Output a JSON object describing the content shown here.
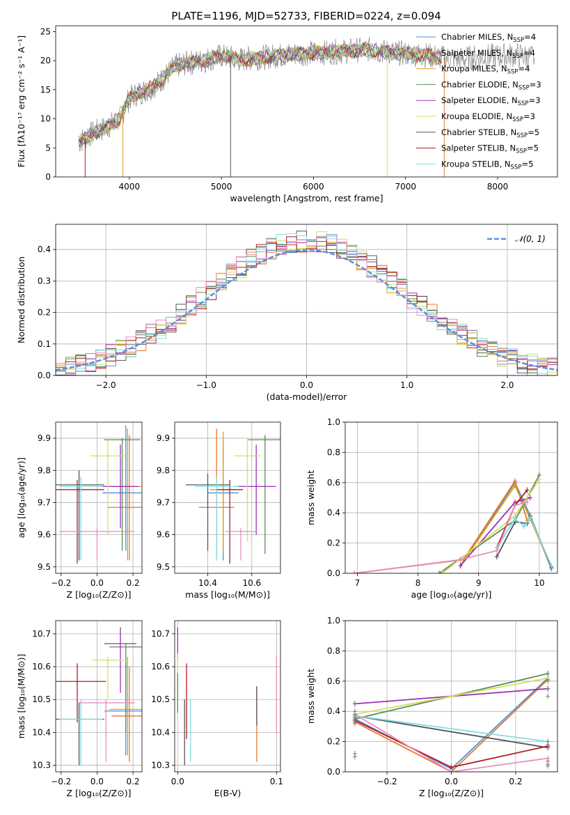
{
  "title": "PLATE=1196, MJD=52733, FIBERID=0224, z=0.094",
  "colors": {
    "Chabrier MILES": "#4a90d9",
    "Salpeter MILES": "#e8772e",
    "Kroupa MILES": "#d4a017",
    "Chabrier ELODIE": "#5b8a5b",
    "Salpeter ELODIE": "#9b30b0",
    "Kroupa ELODIE": "#d4e157",
    "Chabrier STELIB": "#555555",
    "Salpeter STELIB": "#b01c1c",
    "Kroupa STELIB": "#7fdde0",
    "pink": "#e88cc0",
    "normal": "#5b8fd9"
  },
  "chart_data": [
    {
      "type": "line",
      "panel": "spectrum",
      "xlabel": "wavelength [Angstrom, rest frame]",
      "ylabel": "Flux [fλ10⁻¹⁷ erg cm⁻² s⁻¹ A⁻¹]",
      "xlim": [
        3200,
        8650
      ],
      "ylim": [
        0,
        26
      ],
      "xticks": [
        4000,
        5000,
        6000,
        7000,
        8000
      ],
      "yticks": [
        0,
        5,
        10,
        15,
        20,
        25
      ],
      "legend_placement": "right",
      "legend": [
        {
          "name": "Chabrier MILES, N",
          "sub": "SSP",
          "eq": "=4",
          "color": "Chabrier MILES"
        },
        {
          "name": "Salpeter MILES, N",
          "sub": "SSP",
          "eq": "=4",
          "color": "Salpeter MILES"
        },
        {
          "name": "Kroupa MILES, N",
          "sub": "SSP",
          "eq": "=4",
          "color": "Kroupa MILES"
        },
        {
          "name": "Chabrier ELODIE, N",
          "sub": "SSP",
          "eq": "=3",
          "color": "Chabrier ELODIE"
        },
        {
          "name": "Salpeter ELODIE, N",
          "sub": "SSP",
          "eq": "=3",
          "color": "Salpeter ELODIE"
        },
        {
          "name": "Kroupa ELODIE, N",
          "sub": "SSP",
          "eq": "=3",
          "color": "Kroupa ELODIE"
        },
        {
          "name": "Chabrier STELIB, N",
          "sub": "SSP",
          "eq": "=5",
          "color": "Chabrier STELIB"
        },
        {
          "name": "Salpeter STELIB, N",
          "sub": "SSP",
          "eq": "=5",
          "color": "Salpeter STELIB"
        },
        {
          "name": "Kroupa STELIB, N",
          "sub": "SSP",
          "eq": "=5",
          "color": "Kroupa STELIB"
        }
      ],
      "continuum": [
        [
          3450,
          6.0
        ],
        [
          3600,
          7.5
        ],
        [
          3750,
          8.5
        ],
        [
          3900,
          10.0
        ],
        [
          3950,
          12.0
        ],
        [
          4000,
          13.5
        ],
        [
          4100,
          14.5
        ],
        [
          4200,
          15.0
        ],
        [
          4300,
          16.0
        ],
        [
          4400,
          17.5
        ],
        [
          4500,
          19.0
        ],
        [
          4600,
          19.5
        ],
        [
          4800,
          20.0
        ],
        [
          5000,
          20.8
        ],
        [
          5200,
          20.2
        ],
        [
          5400,
          20.5
        ],
        [
          5600,
          20.8
        ],
        [
          5800,
          21.2
        ],
        [
          6000,
          21.3
        ],
        [
          6200,
          21.5
        ],
        [
          6400,
          21.7
        ],
        [
          6600,
          21.9
        ],
        [
          6800,
          21.5
        ],
        [
          7000,
          21.2
        ],
        [
          7200,
          21.0
        ],
        [
          7400,
          20.5
        ],
        [
          7600,
          20.3
        ],
        [
          7800,
          20.6
        ],
        [
          8000,
          20.8
        ],
        [
          8200,
          21.0
        ],
        [
          8400,
          20.5
        ]
      ],
      "observed_range": [
        3450,
        8400
      ],
      "model_range": [
        3450,
        7400
      ],
      "dropouts": [
        {
          "x": 3520,
          "y": 0,
          "color": "Salpeter STELIB"
        },
        {
          "x": 3930,
          "y": 0,
          "color": "Kroupa MILES"
        },
        {
          "x": 5100,
          "y": 0,
          "color": "Chabrier STELIB"
        },
        {
          "x": 6800,
          "y": 0,
          "color": "Kroupa ELODIE"
        },
        {
          "x": 7420,
          "y": 0,
          "color": "Salpeter MILES"
        }
      ]
    },
    {
      "type": "histogram",
      "panel": "residuals",
      "xlabel": "(data-model)/error",
      "ylabel": "Normed distribution",
      "xlim": [
        -2.5,
        2.5
      ],
      "ylim": [
        0,
        0.48
      ],
      "xticks": [
        -2,
        -1,
        0,
        1,
        2
      ],
      "yticks": [
        0.0,
        0.1,
        0.2,
        0.3,
        0.4
      ],
      "grid": true,
      "bin_width": 0.1,
      "legend_label": "𝒩(0, 1)",
      "legend_placement": "top-right",
      "normal": {
        "mean": 0,
        "sigma": 1
      }
    },
    {
      "type": "scatter-errorbar",
      "panel": "age-Z",
      "xlabel": "Z [log₁₀(Z/Z⊙)]",
      "ylabel": "age  [log₁₀(age/yr)]",
      "xlim": [
        -0.23,
        0.25
      ],
      "ylim": [
        9.48,
        9.95
      ],
      "xticks": [
        -0.2,
        0.0,
        0.2
      ],
      "yticks": [
        9.5,
        9.6,
        9.7,
        9.8,
        9.9
      ],
      "grid": true,
      "points": [
        {
          "x": 0.16,
          "y": 9.73,
          "xerr": 0.13,
          "ylo": 9.55,
          "yhi": 9.94,
          "color": "Chabrier MILES"
        },
        {
          "x": 0.18,
          "y": 9.685,
          "xerr": 0.12,
          "ylo": 9.52,
          "yhi": 9.91,
          "color": "Salpeter MILES"
        },
        {
          "x": 0.17,
          "y": 9.75,
          "xerr": 0.1,
          "ylo": 9.52,
          "yhi": 9.93,
          "color": "Kroupa MILES"
        },
        {
          "x": 0.14,
          "y": 9.895,
          "xerr": 0.1,
          "ylo": 9.55,
          "yhi": 9.9,
          "color": "Chabrier ELODIE"
        },
        {
          "x": 0.13,
          "y": 9.75,
          "xerr": 0.1,
          "ylo": 9.62,
          "yhi": 9.88,
          "color": "Salpeter ELODIE"
        },
        {
          "x": 0.06,
          "y": 9.845,
          "xerr": 0.1,
          "ylo": 9.6,
          "yhi": 9.9,
          "color": "Kroupa ELODIE"
        },
        {
          "x": -0.1,
          "y": 9.755,
          "xerr": 0.14,
          "ylo": 9.52,
          "yhi": 9.8,
          "color": "Chabrier STELIB"
        },
        {
          "x": -0.11,
          "y": 9.74,
          "xerr": 0.15,
          "ylo": 9.51,
          "yhi": 9.77,
          "color": "Salpeter STELIB"
        },
        {
          "x": -0.09,
          "y": 9.75,
          "xerr": 0.12,
          "ylo": 9.52,
          "yhi": 9.78,
          "color": "Kroupa STELIB"
        },
        {
          "x": 0.0,
          "y": 9.61,
          "xerr": 0.21,
          "ylo": 9.52,
          "yhi": 9.62,
          "color": "pink"
        }
      ]
    },
    {
      "type": "scatter-errorbar",
      "panel": "age-mass",
      "xlabel": "mass [log₁₀(M/M⊙)]",
      "xlim": [
        10.25,
        10.73
      ],
      "ylim": [
        9.48,
        9.95
      ],
      "xticks": [
        10.4,
        10.6
      ],
      "yticks": [
        9.5,
        9.6,
        9.7,
        9.8,
        9.9
      ],
      "grid": true,
      "points": [
        {
          "x": 10.47,
          "y": 9.73,
          "xerr": 0.07,
          "ylo": 9.52,
          "yhi": 9.89,
          "color": "Chabrier MILES"
        },
        {
          "x": 10.44,
          "y": 9.685,
          "xerr": 0.08,
          "ylo": 9.53,
          "yhi": 9.93,
          "color": "Salpeter MILES"
        },
        {
          "x": 10.47,
          "y": 9.74,
          "xerr": 0.06,
          "ylo": 9.55,
          "yhi": 9.92,
          "color": "Kroupa MILES"
        },
        {
          "x": 10.66,
          "y": 9.895,
          "xerr": 0.08,
          "ylo": 9.54,
          "yhi": 9.91,
          "color": "Chabrier ELODIE"
        },
        {
          "x": 10.62,
          "y": 9.75,
          "xerr": 0.09,
          "ylo": 9.6,
          "yhi": 9.88,
          "color": "Salpeter ELODIE"
        },
        {
          "x": 10.58,
          "y": 9.845,
          "xerr": 0.06,
          "ylo": 9.58,
          "yhi": 9.9,
          "color": "Kroupa ELODIE"
        },
        {
          "x": 10.4,
          "y": 9.755,
          "xerr": 0.1,
          "ylo": 9.55,
          "yhi": 9.79,
          "color": "Chabrier STELIB"
        },
        {
          "x": 10.5,
          "y": 9.74,
          "xerr": 0.06,
          "ylo": 9.51,
          "yhi": 9.77,
          "color": "Salpeter STELIB"
        },
        {
          "x": 10.44,
          "y": 9.75,
          "xerr": 0.1,
          "ylo": 9.52,
          "yhi": 9.78,
          "color": "Kroupa STELIB"
        },
        {
          "x": 10.55,
          "y": 9.61,
          "xerr": 0.07,
          "ylo": 9.52,
          "yhi": 9.62,
          "color": "pink"
        }
      ]
    },
    {
      "type": "line",
      "panel": "weight-age",
      "xlabel": "age  [log₁₀(age/yr)]",
      "ylabel": "mass weight",
      "xlim": [
        6.8,
        10.3
      ],
      "ylim": [
        0.0,
        1.0
      ],
      "xticks": [
        7,
        8,
        9,
        10
      ],
      "yticks": [
        0.0,
        0.2,
        0.4,
        0.6,
        0.8,
        1.0
      ],
      "grid": true,
      "series": [
        {
          "color": "Chabrier MILES",
          "x": [
            8.7,
            9.6,
            9.85,
            10.2
          ],
          "y": [
            0.05,
            0.6,
            0.38,
            0.03
          ]
        },
        {
          "color": "Salpeter MILES",
          "x": [
            6.95,
            8.75,
            9.6,
            9.8
          ],
          "y": [
            0.0,
            0.09,
            0.61,
            0.35
          ]
        },
        {
          "color": "Kroupa MILES",
          "x": [
            8.7,
            9.6,
            9.85,
            10.2
          ],
          "y": [
            0.05,
            0.58,
            0.36,
            0.04
          ]
        },
        {
          "color": "Chabrier ELODIE",
          "x": [
            8.35,
            9.6,
            10.0
          ],
          "y": [
            0.0,
            0.35,
            0.65
          ]
        },
        {
          "color": "Salpeter ELODIE",
          "x": [
            8.7,
            9.6,
            9.85
          ],
          "y": [
            0.05,
            0.47,
            0.5
          ]
        },
        {
          "color": "Kroupa ELODIE",
          "x": [
            8.4,
            9.6,
            10.0
          ],
          "y": [
            0.0,
            0.38,
            0.62
          ]
        },
        {
          "color": "Chabrier STELIB",
          "x": [
            9.3,
            9.6,
            9.8,
            9.85,
            10.2
          ],
          "y": [
            0.11,
            0.34,
            0.33,
            0.38,
            0.04
          ]
        },
        {
          "color": "Salpeter STELIB",
          "x": [
            9.3,
            9.6,
            9.8
          ],
          "y": [
            0.17,
            0.45,
            0.55
          ]
        },
        {
          "color": "Kroupa STELIB",
          "x": [
            9.3,
            9.6,
            9.75,
            9.85,
            10.2
          ],
          "y": [
            0.17,
            0.36,
            0.31,
            0.37,
            0.05
          ]
        },
        {
          "color": "pink",
          "x": [
            6.95,
            8.7,
            9.3,
            9.6,
            9.8
          ],
          "y": [
            0.0,
            0.09,
            0.15,
            0.45,
            0.47
          ]
        }
      ]
    },
    {
      "type": "scatter-errorbar",
      "panel": "mass-Z",
      "xlabel": "Z [log₁₀(Z/Z⊙)]",
      "ylabel": "mass [log₁₀(M/M⊙)]",
      "xlim": [
        -0.23,
        0.25
      ],
      "ylim": [
        10.28,
        10.74
      ],
      "xticks": [
        -0.2,
        0.0,
        0.2
      ],
      "yticks": [
        10.3,
        10.4,
        10.5,
        10.6,
        10.7
      ],
      "grid": true,
      "points": [
        {
          "x": 0.16,
          "y": 10.465,
          "xerr": 0.12,
          "ylo": 10.33,
          "yhi": 10.61,
          "color": "Chabrier MILES"
        },
        {
          "x": 0.18,
          "y": 10.45,
          "xerr": 0.1,
          "ylo": 10.31,
          "yhi": 10.6,
          "color": "Salpeter MILES"
        },
        {
          "x": 0.17,
          "y": 10.47,
          "xerr": 0.1,
          "ylo": 10.33,
          "yhi": 10.63,
          "color": "Kroupa MILES"
        },
        {
          "x": 0.16,
          "y": 10.66,
          "xerr": 0.09,
          "ylo": 10.4,
          "yhi": 10.67,
          "color": "Chabrier ELODIE"
        },
        {
          "x": 0.13,
          "y": 10.67,
          "xerr": 0.09,
          "ylo": 10.52,
          "yhi": 10.72,
          "color": "Salpeter ELODIE"
        },
        {
          "x": 0.06,
          "y": 10.62,
          "xerr": 0.09,
          "ylo": 10.5,
          "yhi": 10.63,
          "color": "Kroupa ELODIE"
        },
        {
          "x": -0.1,
          "y": 10.44,
          "xerr": 0.14,
          "ylo": 10.3,
          "yhi": 10.49,
          "color": "Chabrier STELIB"
        },
        {
          "x": -0.11,
          "y": 10.555,
          "xerr": 0.16,
          "ylo": 10.43,
          "yhi": 10.61,
          "color": "Salpeter STELIB"
        },
        {
          "x": -0.09,
          "y": 10.44,
          "xerr": 0.12,
          "ylo": 10.3,
          "yhi": 10.5,
          "color": "Kroupa STELIB"
        },
        {
          "x": 0.05,
          "y": 10.49,
          "xerr": 0.16,
          "ylo": 10.31,
          "yhi": 10.5,
          "color": "pink"
        }
      ]
    },
    {
      "type": "scatter-errorbar",
      "panel": "mass-EBV",
      "xlabel": "E(B-V)",
      "xlim": [
        -0.003,
        0.104
      ],
      "ylim": [
        10.28,
        10.74
      ],
      "xticks": [
        0.0,
        0.1
      ],
      "yticks": [
        10.3,
        10.4,
        10.5,
        10.6,
        10.7
      ],
      "grid": true,
      "points": [
        {
          "x": 0.0,
          "y": 10.68,
          "ylo": 10.62,
          "yhi": 10.72,
          "color": "Salpeter ELODIE"
        },
        {
          "x": 0.0,
          "y": 10.55,
          "ylo": 10.46,
          "yhi": 10.64,
          "color": "Kroupa ELODIE"
        },
        {
          "x": 0.0,
          "y": 10.49,
          "ylo": 10.46,
          "yhi": 10.58,
          "color": "Chabrier ELODIE"
        },
        {
          "x": 0.007,
          "y": 10.4,
          "ylo": 10.3,
          "yhi": 10.5,
          "color": "Chabrier STELIB"
        },
        {
          "x": 0.009,
          "y": 10.5,
          "ylo": 10.38,
          "yhi": 10.61,
          "color": "Salpeter STELIB"
        },
        {
          "x": 0.013,
          "y": 10.42,
          "ylo": 10.31,
          "yhi": 10.5,
          "color": "Kroupa STELIB"
        },
        {
          "x": 0.08,
          "y": 10.45,
          "ylo": 10.31,
          "yhi": 10.54,
          "color": "Salpeter MILES"
        },
        {
          "x": 0.08,
          "y": 10.48,
          "ylo": 10.42,
          "yhi": 10.54,
          "color": "Chabrier STELIB"
        },
        {
          "x": 0.1,
          "y": 10.5,
          "ylo": 10.4,
          "yhi": 10.63,
          "color": "pink"
        }
      ]
    },
    {
      "type": "line",
      "panel": "weight-Z",
      "xlabel": "Z [log₁₀(Z/Z⊙)]",
      "ylabel": "mass weight",
      "xlim": [
        -0.33,
        0.33
      ],
      "ylim": [
        0.0,
        1.0
      ],
      "xticks": [
        -0.2,
        0.0,
        0.2
      ],
      "yticks": [
        0.0,
        0.2,
        0.4,
        0.6,
        0.8,
        1.0
      ],
      "grid": true,
      "series": [
        {
          "color": "Chabrier MILES",
          "x": [
            -0.3,
            0.0,
            0.3
          ],
          "y": [
            0.35,
            0.02,
            0.62
          ]
        },
        {
          "color": "Salpeter MILES",
          "x": [
            -0.3,
            0.0,
            0.3
          ],
          "y": [
            0.33,
            0.0,
            0.61
          ]
        },
        {
          "color": "Chabrier ELODIE",
          "x": [
            -0.3,
            0.0,
            0.3
          ],
          "y": [
            0.35,
            0.5,
            0.65
          ]
        },
        {
          "color": "Salpeter ELODIE",
          "x": [
            -0.3,
            0.3
          ],
          "y": [
            0.45,
            0.55
          ]
        },
        {
          "color": "Kroupa ELODIE",
          "x": [
            -0.3,
            0.0,
            0.3
          ],
          "y": [
            0.38,
            0.5,
            0.62
          ]
        },
        {
          "color": "Chabrier STELIB",
          "x": [
            -0.3,
            0.3
          ],
          "y": [
            0.37,
            0.16
          ]
        },
        {
          "color": "Salpeter STELIB",
          "x": [
            -0.3,
            0.0,
            0.3
          ],
          "y": [
            0.34,
            0.03,
            0.17
          ]
        },
        {
          "color": "Kroupa STELIB",
          "x": [
            -0.3,
            0.3
          ],
          "y": [
            0.37,
            0.2
          ]
        },
        {
          "color": "pink",
          "x": [
            -0.3,
            0.0,
            0.3
          ],
          "y": [
            0.38,
            0.0,
            0.09
          ]
        }
      ],
      "error_markers": [
        {
          "x": -0.3,
          "values": [
            0.1,
            0.12,
            0.32,
            0.34,
            0.36,
            0.38,
            0.4,
            0.45
          ]
        },
        {
          "x": 0.3,
          "values": [
            0.04,
            0.05,
            0.07,
            0.16,
            0.18,
            0.2,
            0.5,
            0.55,
            0.6,
            0.65
          ]
        }
      ]
    }
  ]
}
